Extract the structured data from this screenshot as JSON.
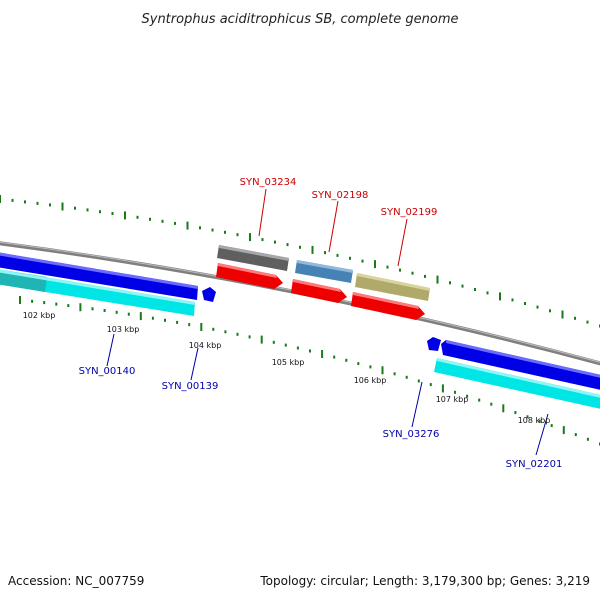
{
  "title": "Syntrophus aciditrophicus SB, complete genome",
  "footer": {
    "accession": "Accession: NC_007759",
    "summary": "Topology: circular; Length: 3,179,300 bp; Genes: 3,219"
  },
  "colors": {
    "forward_label": "#cc0000",
    "reverse_label": "#0000aa",
    "backbone": "#808080",
    "tick": "#1a7a1a"
  },
  "position_labels": [
    "102 kbp",
    "103 kbp",
    "104 kbp",
    "105 kbp",
    "106 kbp",
    "107 kbp",
    "108 kbp"
  ],
  "genes": [
    {
      "label": "SYN_03234",
      "strand": "forward"
    },
    {
      "label": "SYN_02198",
      "strand": "forward"
    },
    {
      "label": "SYN_02199",
      "strand": "forward"
    },
    {
      "label": "SYN_00140",
      "strand": "reverse"
    },
    {
      "label": "SYN_00139",
      "strand": "reverse"
    },
    {
      "label": "SYN_03276",
      "strand": "reverse"
    },
    {
      "label": "SYN_02201",
      "strand": "reverse"
    }
  ]
}
